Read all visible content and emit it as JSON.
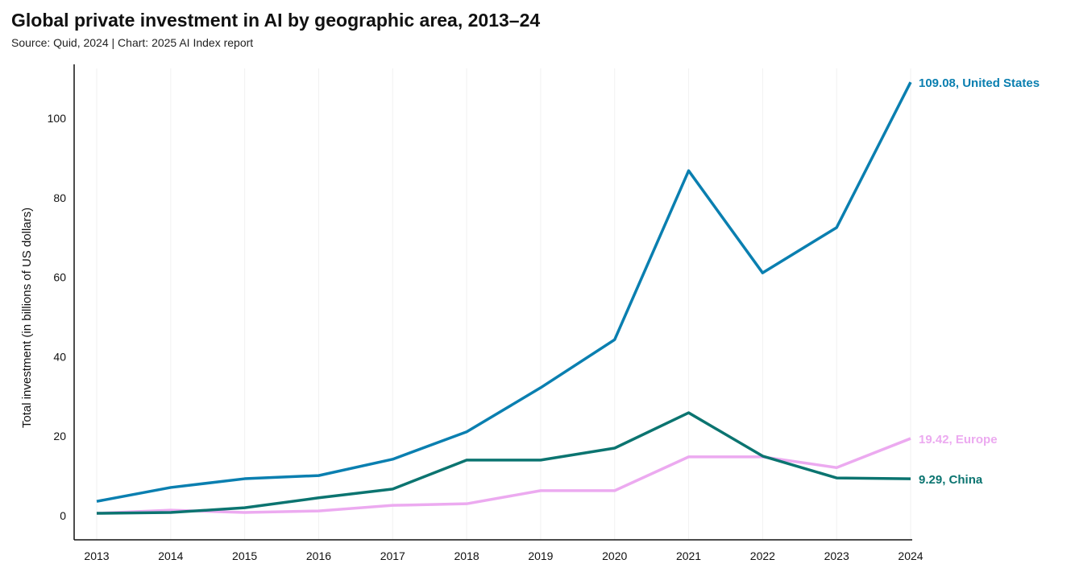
{
  "chart_data": {
    "type": "line",
    "title": "Global private investment in AI by geographic area, 2013–24",
    "subtitle": "Source: Quid, 2024 | Chart: 2025 AI Index report",
    "xlabel": "",
    "ylabel": "Total investment (in billions of US dollars)",
    "x": [
      "2013",
      "2014",
      "2015",
      "2016",
      "2017",
      "2018",
      "2019",
      "2020",
      "2021",
      "2022",
      "2023",
      "2024"
    ],
    "ylim": [
      0,
      115
    ],
    "yticks": [
      0,
      20,
      40,
      60,
      80,
      100
    ],
    "grid": "vertical-faint",
    "series": [
      {
        "name": "United States",
        "color": "#0a7fb0",
        "end_label": "109.08, United States",
        "values": [
          3.6,
          7.1,
          9.3,
          10.1,
          14.2,
          21.1,
          32.2,
          44.3,
          86.8,
          61.1,
          72.5,
          109.08
        ]
      },
      {
        "name": "Europe",
        "color": "#ecaaf0",
        "end_label": "19.42, Europe",
        "values": [
          0.6,
          1.4,
          0.8,
          1.2,
          2.6,
          3.0,
          6.3,
          6.3,
          14.8,
          14.8,
          12.1,
          19.42
        ]
      },
      {
        "name": "China",
        "color": "#0b7470",
        "end_label": "9.29, China",
        "values": [
          0.6,
          0.8,
          2.0,
          4.5,
          6.7,
          14.0,
          14.0,
          17.0,
          25.9,
          15.0,
          9.5,
          9.29
        ]
      }
    ]
  }
}
